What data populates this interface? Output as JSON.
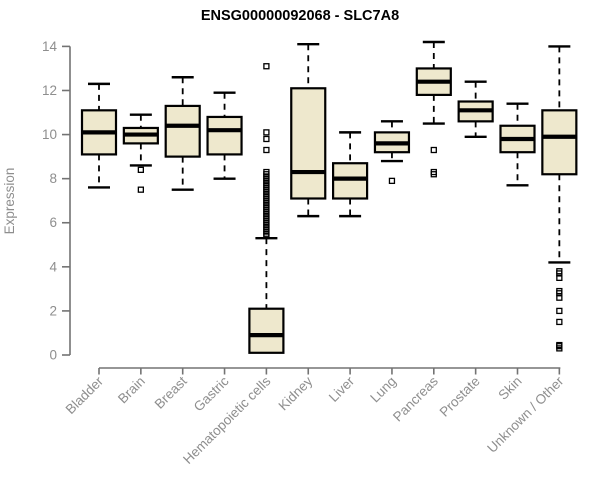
{
  "chart_data": {
    "type": "boxplot",
    "title": "ENSG00000092068 - SLC7A8",
    "ylabel": "Expression",
    "xlabel": "",
    "ylim": [
      0,
      14
    ],
    "yticks": [
      0,
      2,
      4,
      6,
      8,
      10,
      12,
      14
    ],
    "grid": false,
    "legend": "none",
    "colors": {
      "box_fill": "#EEE8CD",
      "box_stroke": "#000000",
      "median": "#000000",
      "whisker": "#000000",
      "axis": "#737373",
      "tick_label": "#8e8e8e",
      "title": "#000000",
      "background": "#ffffff"
    },
    "categories": [
      "Bladder",
      "Brain",
      "Breast",
      "Gastric",
      "Hematopoietic cells",
      "Kidney",
      "Liver",
      "Lung",
      "Pancreas",
      "Prostate",
      "Skin",
      "Unknown / Other"
    ],
    "series": [
      {
        "category": "Bladder",
        "min": 7.6,
        "q1": 9.1,
        "median": 10.1,
        "q3": 11.1,
        "max": 12.3,
        "outliers": []
      },
      {
        "category": "Brain",
        "min": 8.6,
        "q1": 9.6,
        "median": 10.0,
        "q3": 10.3,
        "max": 10.9,
        "outliers": [
          8.4,
          7.5
        ]
      },
      {
        "category": "Breast",
        "min": 7.5,
        "q1": 9.0,
        "median": 10.4,
        "q3": 11.3,
        "max": 12.6,
        "outliers": []
      },
      {
        "category": "Gastric",
        "min": 8.0,
        "q1": 9.1,
        "median": 10.2,
        "q3": 10.8,
        "max": 11.9,
        "outliers": []
      },
      {
        "category": "Hematopoietic cells",
        "min": 0.1,
        "q1": 0.1,
        "median": 0.9,
        "q3": 2.1,
        "max": 5.3,
        "outliers": [
          13.1,
          10.1,
          9.8,
          9.3,
          8.3,
          8.2,
          8.1,
          8.0,
          7.9,
          7.8,
          7.7,
          7.6,
          7.5,
          7.4,
          7.3,
          7.2,
          7.1,
          7.0,
          6.9,
          6.8,
          6.7,
          6.6,
          6.5,
          6.4,
          6.3,
          6.2,
          6.1,
          6.0,
          5.9,
          5.8,
          5.7,
          5.6,
          5.5,
          5.4
        ]
      },
      {
        "category": "Kidney",
        "min": 6.3,
        "q1": 7.1,
        "median": 8.3,
        "q3": 12.1,
        "max": 14.1,
        "outliers": []
      },
      {
        "category": "Liver",
        "min": 6.3,
        "q1": 7.1,
        "median": 8.0,
        "q3": 8.7,
        "max": 10.1,
        "outliers": []
      },
      {
        "category": "Lung",
        "min": 8.8,
        "q1": 9.2,
        "median": 9.6,
        "q3": 10.1,
        "max": 10.6,
        "outliers": [
          7.9
        ]
      },
      {
        "category": "Pancreas",
        "min": 10.5,
        "q1": 11.8,
        "median": 12.4,
        "q3": 13.0,
        "max": 14.2,
        "outliers": [
          9.3,
          8.3,
          8.2
        ]
      },
      {
        "category": "Prostate",
        "min": 9.9,
        "q1": 10.6,
        "median": 11.1,
        "q3": 11.5,
        "max": 12.4,
        "outliers": []
      },
      {
        "category": "Skin",
        "min": 7.7,
        "q1": 9.2,
        "median": 9.8,
        "q3": 10.4,
        "max": 11.4,
        "outliers": []
      },
      {
        "category": "Unknown / Other",
        "min": 4.2,
        "q1": 8.2,
        "median": 9.9,
        "q3": 11.1,
        "max": 14.0,
        "outliers": [
          3.8,
          3.7,
          3.5,
          2.9,
          2.8,
          2.6,
          2.0,
          1.5,
          0.45,
          0.4,
          0.3
        ]
      }
    ]
  }
}
